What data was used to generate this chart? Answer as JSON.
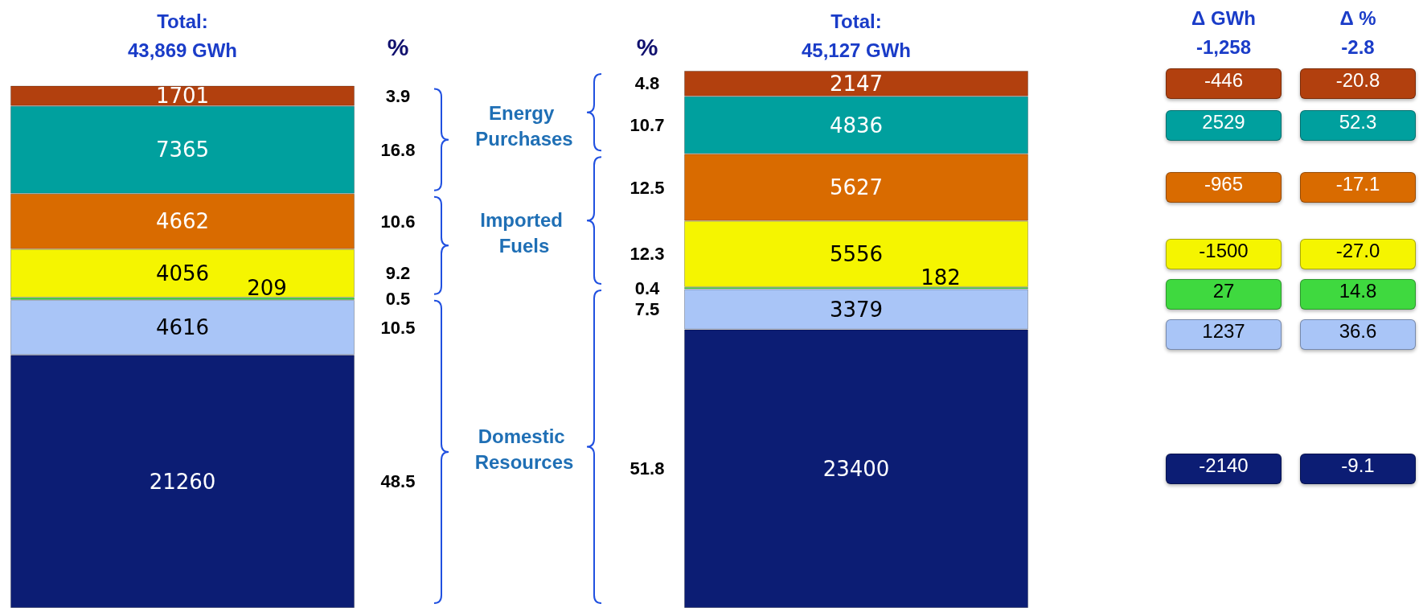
{
  "chart_data": {
    "type": "bar",
    "stacked": true,
    "data_labels": true,
    "categories": [
      null,
      null
    ],
    "series": [
      {
        "color": "#0c1d74",
        "values": [
          21260,
          23400
        ]
      },
      {
        "color": "#a9c5f7",
        "values": [
          4616,
          3379
        ]
      },
      {
        "color": "#3fd93f",
        "values": [
          209,
          182
        ]
      },
      {
        "color": "#f5f500",
        "values": [
          4056,
          5556
        ]
      },
      {
        "color": "#d96b00",
        "values": [
          4662,
          5627
        ]
      },
      {
        "color": "#00a09e",
        "values": [
          7365,
          4836
        ]
      },
      {
        "color": "#b2400e",
        "values": [
          1701,
          2147
        ]
      }
    ],
    "totals": [
      "Total:\n43,869 GWh",
      "Total:\n45,127 GWh"
    ],
    "annotations": [
      "%",
      "%",
      "48.5",
      "10.5",
      "0.5",
      "9.2",
      "10.6",
      "16.8",
      "3.9",
      "51.8",
      "7.5",
      "0.4",
      "12.3",
      "12.5",
      "10.7",
      "4.8",
      "Domestic Resources",
      "Imported Fuels",
      "Energy Purchases",
      "Δ GWh",
      "-1,258",
      "Δ %",
      "-2.8",
      "-2140",
      "1237",
      "27",
      "-1500",
      "-965",
      "2529",
      "-446",
      "-9.1",
      "36.6",
      "14.8",
      "-27.0",
      "-17.1",
      "52.3",
      "-20.8"
    ]
  }
}
